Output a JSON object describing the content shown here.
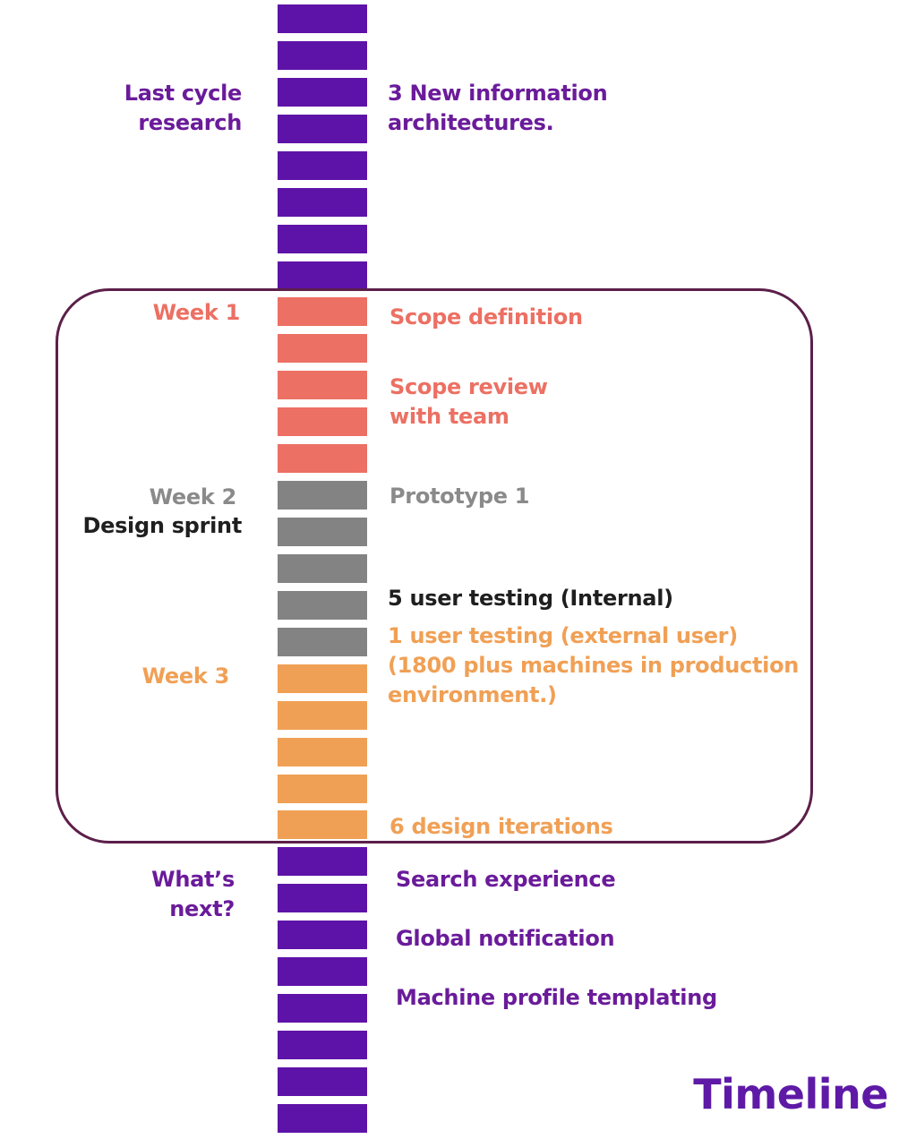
{
  "colors": {
    "purple": "#5e13a8",
    "salmon": "#ec7063",
    "grey": "#838383",
    "orange": "#f0a055",
    "frame": "#5c1f4a"
  },
  "bars": [
    "purple",
    "purple",
    "purple",
    "purple",
    "purple",
    "purple",
    "purple",
    "purple",
    "salmon",
    "salmon",
    "salmon",
    "salmon",
    "salmon",
    "grey",
    "grey",
    "grey",
    "grey",
    "grey",
    "orange",
    "orange",
    "orange",
    "orange",
    "orange",
    "purple",
    "purple",
    "purple",
    "purple",
    "purple",
    "purple",
    "purple",
    "purple"
  ],
  "left_labels": {
    "last_cycle": "Last cycle\nresearch",
    "week1": "Week 1",
    "week2": "Week 2",
    "design_sprint": "Design sprint",
    "week3": "Week 3",
    "whats_next": "What’s\nnext?"
  },
  "right_labels": {
    "new_ia": "3 New information\narchitectures.",
    "scope_definition": "Scope definition",
    "scope_review": "Scope review\nwith team",
    "prototype1": "Prototype 1",
    "user_testing_internal": "5 user testing (Internal)",
    "user_testing_external": "1 user testing (external user)\n(1800 plus machines in production\nenvironment.)",
    "design_iterations": "6 design iterations",
    "search_experience": "Search experience",
    "global_notification": "Global notification",
    "machine_profile": "Machine profile templating"
  },
  "title": "Timeline"
}
